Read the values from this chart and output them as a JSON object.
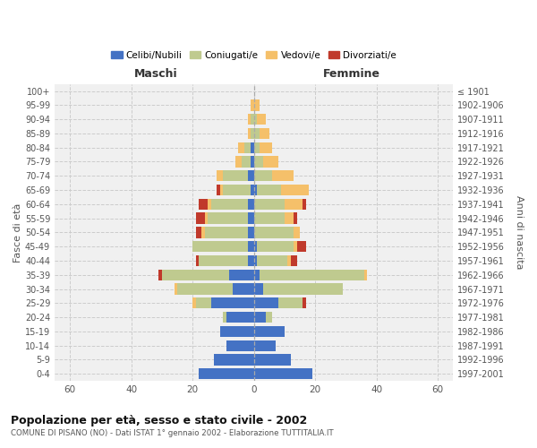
{
  "age_groups": [
    "0-4",
    "5-9",
    "10-14",
    "15-19",
    "20-24",
    "25-29",
    "30-34",
    "35-39",
    "40-44",
    "45-49",
    "50-54",
    "55-59",
    "60-64",
    "65-69",
    "70-74",
    "75-79",
    "80-84",
    "85-89",
    "90-94",
    "95-99",
    "100+"
  ],
  "birth_years": [
    "1997-2001",
    "1992-1996",
    "1987-1991",
    "1982-1986",
    "1977-1981",
    "1972-1976",
    "1967-1971",
    "1962-1966",
    "1957-1961",
    "1952-1956",
    "1947-1951",
    "1942-1946",
    "1937-1941",
    "1932-1936",
    "1927-1931",
    "1922-1926",
    "1917-1921",
    "1912-1916",
    "1907-1911",
    "1902-1906",
    "≤ 1901"
  ],
  "maschi": {
    "celibi": [
      18,
      13,
      9,
      11,
      9,
      14,
      7,
      8,
      2,
      2,
      2,
      2,
      2,
      1,
      2,
      1,
      1,
      0,
      0,
      0,
      0
    ],
    "coniugati": [
      0,
      0,
      0,
      0,
      1,
      5,
      18,
      22,
      16,
      18,
      14,
      13,
      12,
      9,
      8,
      3,
      2,
      1,
      1,
      0,
      0
    ],
    "vedovi": [
      0,
      0,
      0,
      0,
      0,
      1,
      1,
      0,
      0,
      0,
      1,
      1,
      1,
      1,
      2,
      2,
      2,
      1,
      1,
      1,
      0
    ],
    "divorziati": [
      0,
      0,
      0,
      0,
      0,
      0,
      0,
      1,
      1,
      0,
      2,
      3,
      3,
      1,
      0,
      0,
      0,
      0,
      0,
      0,
      0
    ]
  },
  "femmine": {
    "nubili": [
      19,
      12,
      7,
      10,
      4,
      8,
      3,
      2,
      1,
      1,
      0,
      0,
      0,
      1,
      0,
      0,
      0,
      0,
      0,
      0,
      0
    ],
    "coniugate": [
      0,
      0,
      0,
      0,
      2,
      8,
      26,
      34,
      10,
      12,
      13,
      10,
      10,
      8,
      6,
      3,
      2,
      2,
      1,
      0,
      0
    ],
    "vedove": [
      0,
      0,
      0,
      0,
      0,
      0,
      0,
      1,
      1,
      1,
      2,
      3,
      6,
      9,
      7,
      5,
      4,
      3,
      3,
      2,
      0
    ],
    "divorziate": [
      0,
      0,
      0,
      0,
      0,
      1,
      0,
      0,
      2,
      3,
      0,
      1,
      1,
      0,
      0,
      0,
      0,
      0,
      0,
      0,
      0
    ]
  },
  "colors": {
    "celibi_nubili": "#4472C4",
    "coniugati": "#BFCA8F",
    "vedovi": "#F5C06A",
    "divorziati": "#C0392B"
  },
  "xlim": 65,
  "title": "Popolazione per età, sesso e stato civile - 2002",
  "subtitle": "COMUNE DI PISANO (NO) - Dati ISTAT 1° gennaio 2002 - Elaborazione TUTTITALIA.IT",
  "ylabel_left": "Fasce di età",
  "ylabel_right": "Anni di nascita",
  "xlabel_left": "Maschi",
  "xlabel_right": "Femmine",
  "background_color": "#ffffff",
  "grid_color": "#cccccc"
}
